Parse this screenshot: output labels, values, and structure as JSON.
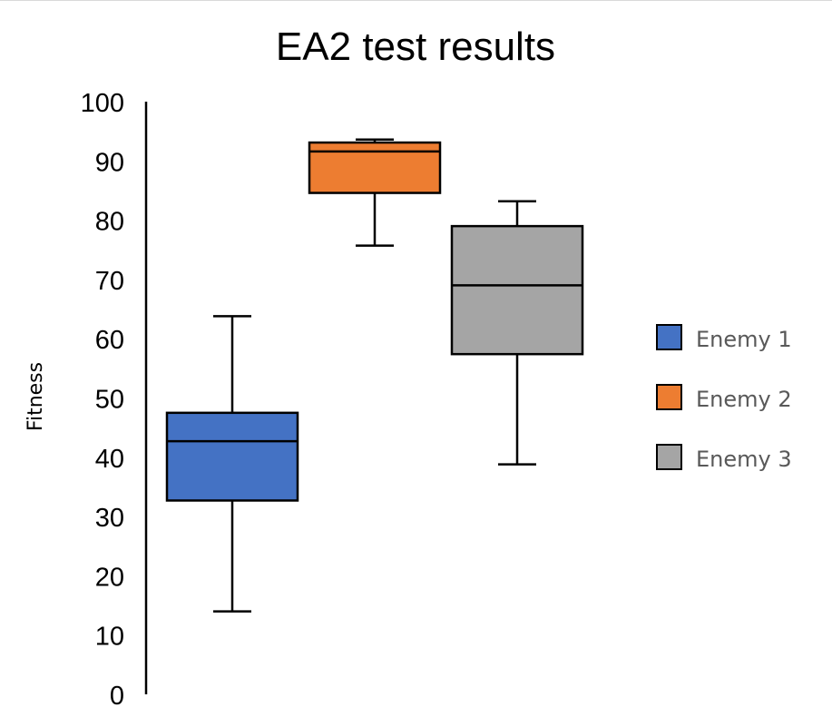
{
  "chart_data": {
    "type": "boxplot",
    "title": "EA2 test results",
    "xlabel": "",
    "ylabel": "Fitness",
    "ylim": [
      0,
      100
    ],
    "yticks": [
      0,
      10,
      20,
      30,
      40,
      50,
      60,
      70,
      80,
      90,
      100
    ],
    "grid": false,
    "legend_position": "right",
    "series": [
      {
        "name": "Enemy 1",
        "color": "#4472c4",
        "min": 14,
        "q1": 32.7,
        "median": 42.7,
        "q3": 47.5,
        "max": 63.8
      },
      {
        "name": "Enemy 2",
        "color": "#ed7d31",
        "min": 75.7,
        "q1": 84.6,
        "median": 91.6,
        "q3": 93.1,
        "max": 93.6
      },
      {
        "name": "Enemy 3",
        "color": "#a5a5a5",
        "min": 38.8,
        "q1": 57.4,
        "median": 69.0,
        "q3": 79.0,
        "max": 83.2
      }
    ]
  }
}
